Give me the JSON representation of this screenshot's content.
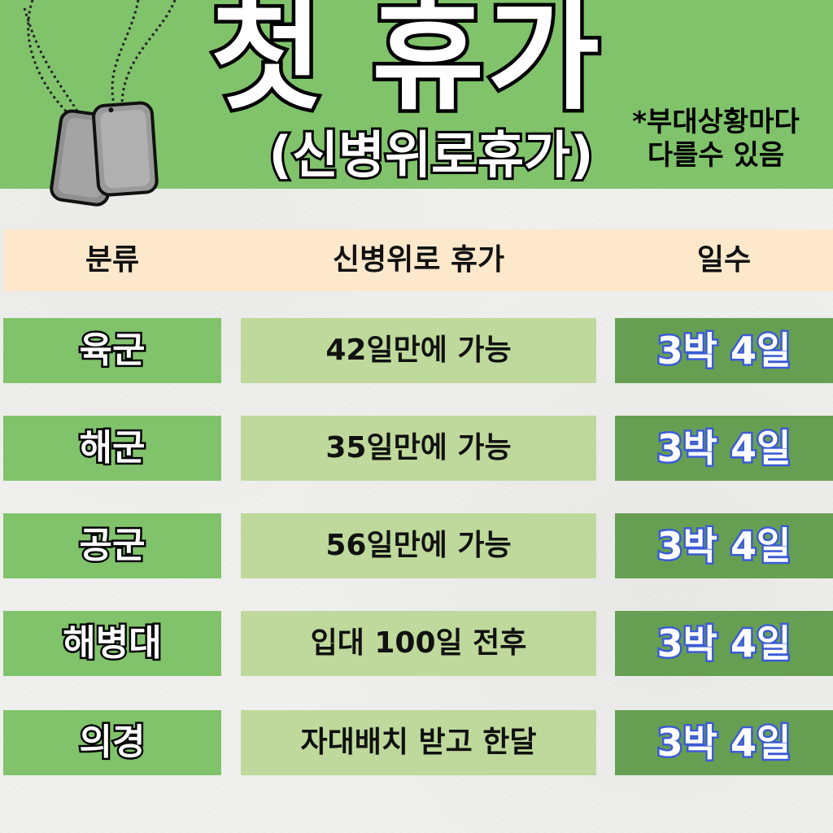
{
  "header": {
    "title": "첫 휴가",
    "subtitle": "(신병위로휴가)",
    "note_line1": "*부대상황마다",
    "note_line2": "다를수 있음",
    "tags_icon": "dog-tags-icon",
    "bg_color": "#80c36b"
  },
  "table": {
    "columns": [
      "분류",
      "신병위로 휴가",
      "일수"
    ],
    "rows": [
      {
        "branch": "육군",
        "condition": "42일만에 가능",
        "days": "3박 4일"
      },
      {
        "branch": "해군",
        "condition": "35일만에 가능",
        "days": "3박 4일"
      },
      {
        "branch": "공군",
        "condition": "56일만에 가능",
        "days": "3박 4일"
      },
      {
        "branch": "해병대",
        "condition": "입대 100일 전후",
        "days": "3박 4일"
      },
      {
        "branch": "의경",
        "condition": "자대배치 받고 한달",
        "days": "3박 4일"
      }
    ],
    "header_color": "#fde8cc",
    "branch_color": "#80c36b",
    "condition_color": "#bed99b",
    "days_color": "#679f52"
  }
}
